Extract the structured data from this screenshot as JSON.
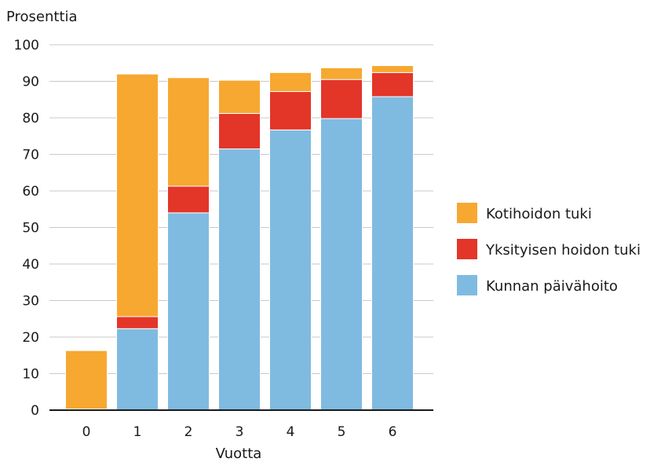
{
  "chart_data": {
    "type": "bar",
    "stacked": true,
    "ylabel": "Prosenttia",
    "xlabel": "Vuotta",
    "ylim": [
      0,
      100
    ],
    "yticks": [
      0,
      10,
      20,
      30,
      40,
      50,
      60,
      70,
      80,
      90,
      100
    ],
    "grid": true,
    "legend_position": "right",
    "categories": [
      "0",
      "1",
      "2",
      "3",
      "4",
      "5",
      "6"
    ],
    "series": [
      {
        "name": "Kunnan päivähoito",
        "color": "#7fbbe1",
        "values": [
          0.3,
          22.3,
          54,
          71.5,
          76.7,
          79.8,
          85.8
        ]
      },
      {
        "name": "Yksityisen hoidon tuki",
        "color": "#e43529",
        "values": [
          0,
          3.3,
          7.3,
          9.7,
          10.5,
          10.7,
          6.6
        ]
      },
      {
        "name": "Kotihoidon tuki",
        "color": "#f7a830",
        "values": [
          16,
          66.4,
          29.7,
          9.1,
          5.2,
          3.2,
          1.9
        ]
      }
    ],
    "legend_order": [
      "Kotihoidon tuki",
      "Yksityisen hoidon tuki",
      "Kunnan päivähoito"
    ]
  }
}
